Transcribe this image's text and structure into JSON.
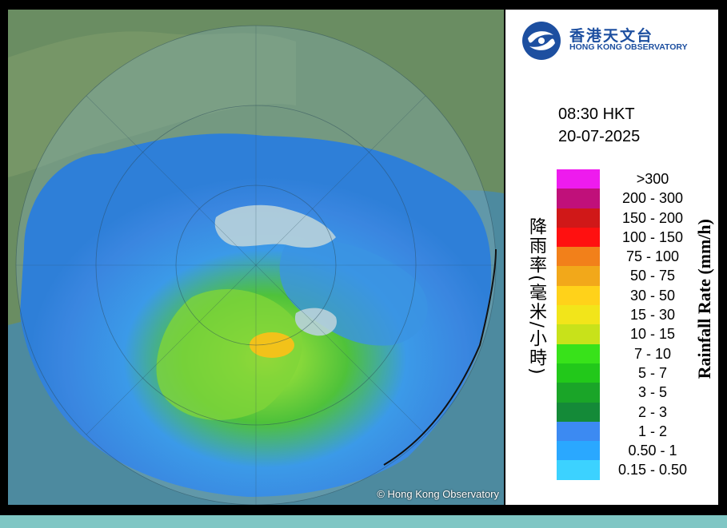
{
  "map": {
    "copyright": "© Hong Kong Observatory",
    "sea_color": "#4a8aa0",
    "land_color": "#6d8e63"
  },
  "logo": {
    "icon": "hko-logo-icon",
    "chinese": "香港天文台",
    "english": "HONG KONG OBSERVATORY",
    "color": "#1d4fa0"
  },
  "timestamp": {
    "time": "08:30 HKT",
    "date": "20-07-2025"
  },
  "legend": {
    "title_cn": "降雨率(毫米/小時)",
    "title_en": "Rainfall Rate (mm/h)",
    "items": [
      {
        "label": ">300",
        "color": "#ee1bee"
      },
      {
        "label": "200 - 300",
        "color": "#c0107a"
      },
      {
        "label": "150 - 200",
        "color": "#d01818"
      },
      {
        "label": "100 - 150",
        "color": "#ff1010"
      },
      {
        "label": "75 - 100",
        "color": "#f2801a"
      },
      {
        "label": "50 - 75",
        "color": "#f2a81a"
      },
      {
        "label": "30 - 50",
        "color": "#ffd21a"
      },
      {
        "label": "15 - 30",
        "color": "#f2e51a"
      },
      {
        "label": "10 - 15",
        "color": "#c8e21a"
      },
      {
        "label": "7 - 10",
        "color": "#38e21a"
      },
      {
        "label": "5 - 7",
        "color": "#22c81a"
      },
      {
        "label": "3 - 5",
        "color": "#1aa528"
      },
      {
        "label": "2 - 3",
        "color": "#148a38"
      },
      {
        "label": "1 - 2",
        "color": "#3c8af2"
      },
      {
        "label": "0.50 - 1",
        "color": "#2aa8ff"
      },
      {
        "label": "0.15 - 0.50",
        "color": "#3cd2ff"
      }
    ]
  }
}
